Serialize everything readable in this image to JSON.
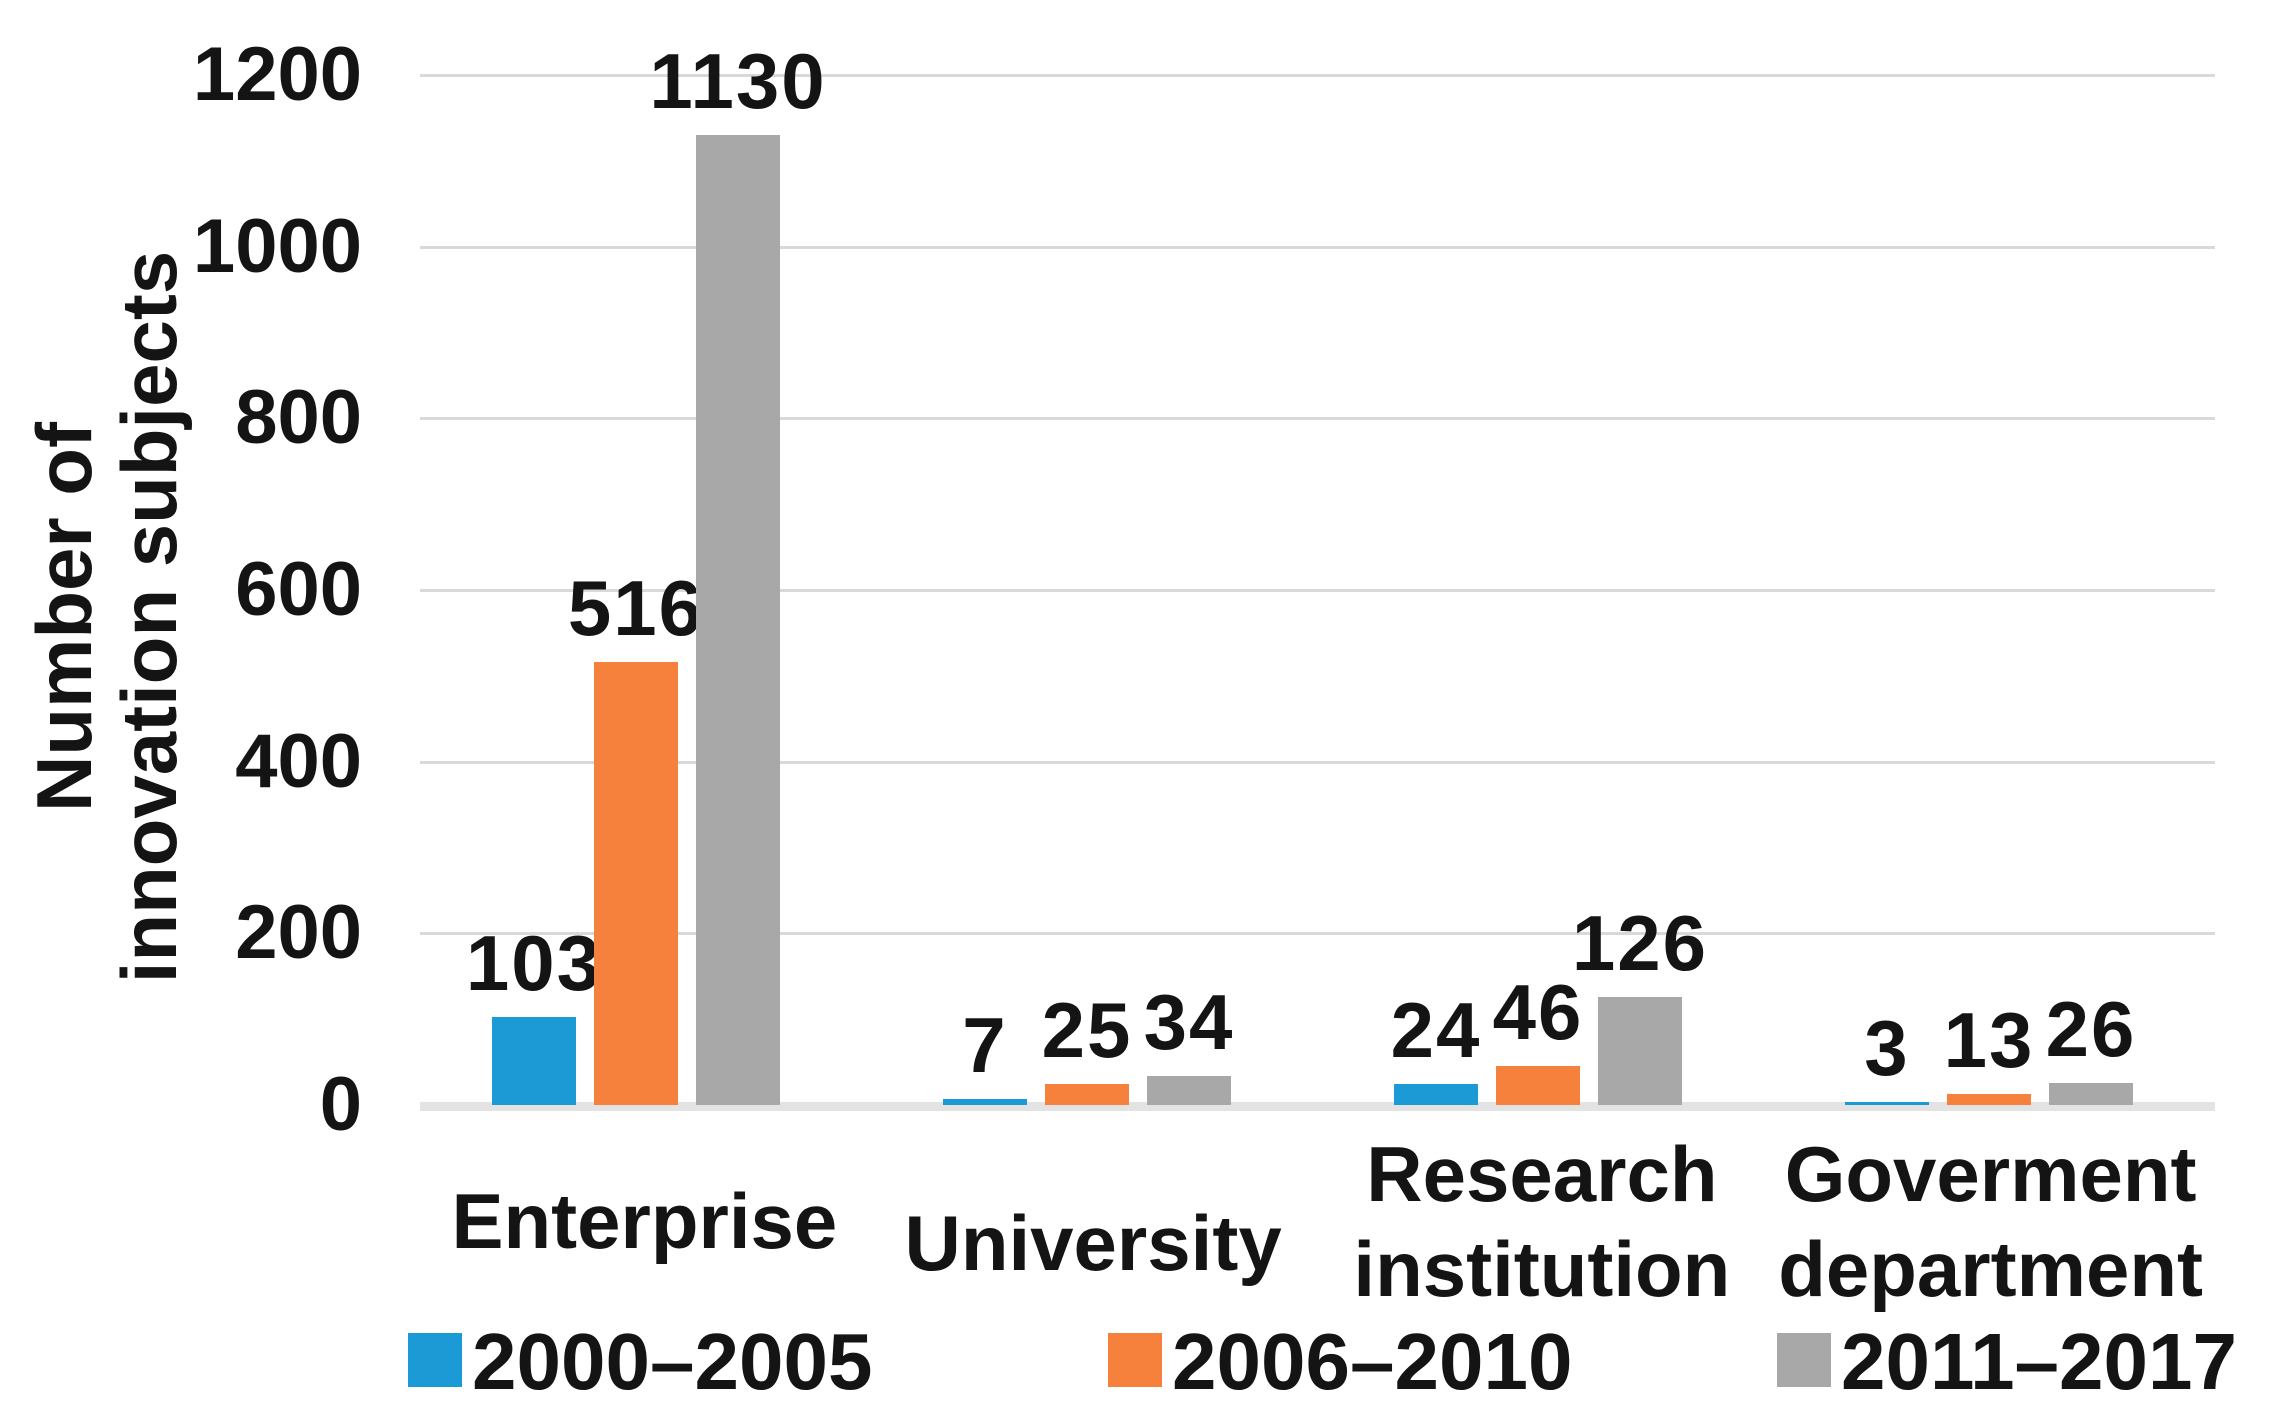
{
  "chart_data": {
    "type": "bar",
    "title": "",
    "ylabel_lines": [
      "Number of",
      "innovation subjects"
    ],
    "xlabel": "",
    "ylim": [
      0,
      1200
    ],
    "yticks": [
      0,
      200,
      400,
      600,
      800,
      1000,
      1200
    ],
    "grid": true,
    "legend_position": "bottom",
    "categories": [
      {
        "lines": [
          "Enterprise"
        ]
      },
      {
        "lines": [
          "University"
        ]
      },
      {
        "lines": [
          "Research",
          "institution"
        ]
      },
      {
        "lines": [
          "Goverment",
          "department"
        ]
      }
    ],
    "series": [
      {
        "name": "2000–2005",
        "color": "#1b9ad5",
        "values": [
          103,
          7,
          24,
          3
        ]
      },
      {
        "name": "2006–2010",
        "color": "#f6813d",
        "values": [
          516,
          25,
          46,
          13
        ]
      },
      {
        "name": "2011–2017",
        "color": "#a9a8a8",
        "values": [
          1130,
          34,
          126,
          26
        ]
      }
    ]
  }
}
